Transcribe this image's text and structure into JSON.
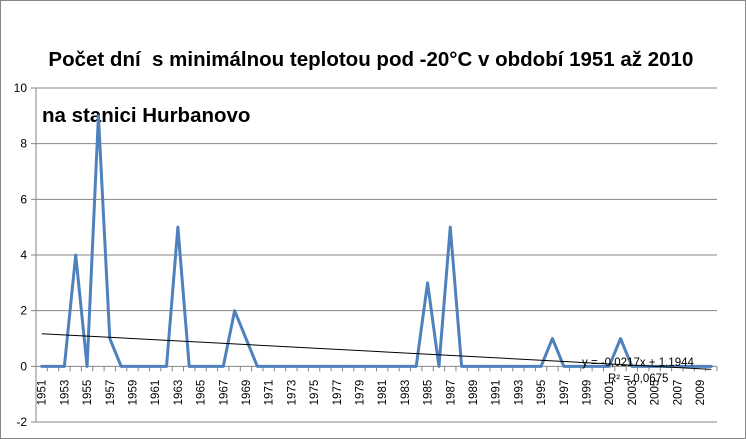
{
  "chart_data": {
    "type": "line",
    "title_line1": "Počet dní  s minimálnou teplotou pod -20°C v období 1951 až 2010",
    "title_line2": "na stanici Hurbanovo",
    "xlabel": "",
    "ylabel": "",
    "ylim": [
      -2,
      10
    ],
    "yticks": [
      -2,
      0,
      2,
      4,
      6,
      8,
      10
    ],
    "x": [
      1951,
      1952,
      1953,
      1954,
      1955,
      1956,
      1957,
      1958,
      1959,
      1960,
      1961,
      1962,
      1963,
      1964,
      1965,
      1966,
      1967,
      1968,
      1969,
      1970,
      1971,
      1972,
      1973,
      1974,
      1975,
      1976,
      1977,
      1978,
      1979,
      1980,
      1981,
      1982,
      1983,
      1984,
      1985,
      1986,
      1987,
      1988,
      1989,
      1990,
      1991,
      1992,
      1993,
      1994,
      1995,
      1996,
      1997,
      1998,
      1999,
      2000,
      2001,
      2002,
      2003,
      2004,
      2005,
      2006,
      2007,
      2008,
      2009,
      2010
    ],
    "xtick_labels": [
      "1951",
      "1953",
      "1955",
      "1957",
      "1959",
      "1961",
      "1963",
      "1965",
      "1967",
      "1969",
      "1971",
      "1973",
      "1975",
      "1977",
      "1979",
      "1981",
      "1983",
      "1985",
      "1987",
      "1989",
      "1991",
      "1993",
      "1995",
      "1997",
      "1999",
      "2001",
      "2003",
      "2005",
      "2007",
      "2009"
    ],
    "series": [
      {
        "name": "",
        "color": "#4f81bd",
        "values": [
          0,
          0,
          0,
          4,
          0,
          9,
          1,
          0,
          0,
          0,
          0,
          0,
          5,
          0,
          0,
          0,
          0,
          2,
          1,
          0,
          0,
          0,
          0,
          0,
          0,
          0,
          0,
          0,
          0,
          0,
          0,
          0,
          0,
          0,
          3,
          0,
          5,
          0,
          0,
          0,
          0,
          0,
          0,
          0,
          0,
          1,
          0,
          0,
          0,
          0,
          0,
          1,
          0,
          0,
          0,
          0,
          0,
          0,
          0,
          0
        ]
      }
    ],
    "trendline": {
      "type": "linear",
      "slope": -0.0217,
      "intercept": 1.1944,
      "color": "#000000",
      "equation_label": "y = -0,0217x + 1,1944",
      "r2_label": "R² = 0,0675"
    },
    "grid": true,
    "legend": "none"
  }
}
